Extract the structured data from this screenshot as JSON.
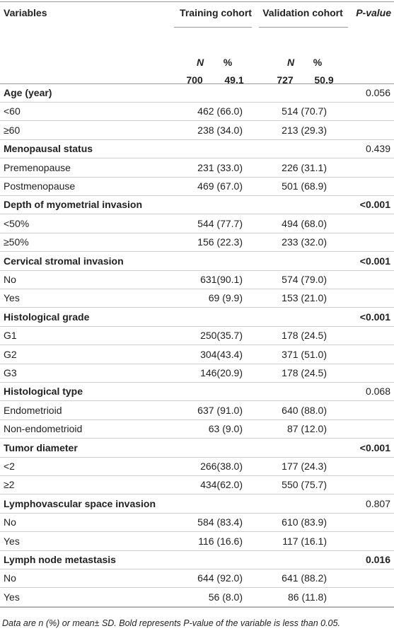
{
  "header": {
    "variables": "Variables",
    "training": "Training cohort",
    "validation": "Validation cohort",
    "pvalue": "P-value",
    "n_label": "N",
    "pct_label": "%",
    "n_label_2": "N",
    "pct_label_2": "%",
    "training_n": "700",
    "training_pct": "49.1",
    "validation_n": "727",
    "validation_pct": "50.9"
  },
  "groups": [
    {
      "label": "Age (year)",
      "p": "0.056",
      "p_bold": false,
      "rows": [
        [
          "<60",
          "462 (66.0)",
          "514 (70.7)"
        ],
        [
          "≥60",
          "238 (34.0)",
          "213 (29.3)"
        ]
      ]
    },
    {
      "label": "Menopausal status",
      "p": "0.439",
      "p_bold": false,
      "rows": [
        [
          "Premenopause",
          "231 (33.0)",
          "226 (31.1)"
        ],
        [
          "Postmenopause",
          "469 (67.0)",
          "501 (68.9)"
        ]
      ]
    },
    {
      "label": "Depth of myometrial invasion",
      "p": "<0.001",
      "p_bold": true,
      "rows": [
        [
          "<50%",
          "544 (77.7)",
          "494 (68.0)"
        ],
        [
          "≥50%",
          "156 (22.3)",
          "233 (32.0)"
        ]
      ]
    },
    {
      "label": "Cervical stromal invasion",
      "p": "<0.001",
      "p_bold": true,
      "rows": [
        [
          "No",
          "631(90.1)",
          "574 (79.0)"
        ],
        [
          "Yes",
          "69 (9.9)",
          "153 (21.0)"
        ]
      ]
    },
    {
      "label": "Histological grade",
      "p": "<0.001",
      "p_bold": true,
      "rows": [
        [
          "G1",
          "250(35.7)",
          "178 (24.5)"
        ],
        [
          "G2",
          "304(43.4)",
          "371 (51.0)"
        ],
        [
          "G3",
          "146(20.9)",
          "178 (24.5)"
        ]
      ]
    },
    {
      "label": "Histological type",
      "p": "0.068",
      "p_bold": false,
      "rows": [
        [
          "Endometrioid",
          "637 (91.0)",
          "640 (88.0)"
        ],
        [
          "Non-endometrioid",
          "63 (9.0)",
          "87 (12.0)"
        ]
      ]
    },
    {
      "label": "Tumor diameter",
      "p": "<0.001",
      "p_bold": true,
      "rows": [
        [
          "<2",
          "266(38.0)",
          "177 (24.3)"
        ],
        [
          "≥2",
          "434(62.0)",
          "550 (75.7)"
        ]
      ]
    },
    {
      "label": "Lymphovascular space invasion",
      "p": "0.807",
      "p_bold": false,
      "rows": [
        [
          "No",
          "584 (83.4)",
          "610 (83.9)"
        ],
        [
          "Yes",
          "116 (16.6)",
          "117 (16.1)"
        ]
      ]
    },
    {
      "label": "Lymph node metastasis",
      "p": "0.016",
      "p_bold": true,
      "rows": [
        [
          "No",
          "644 (92.0)",
          "641 (88.2)"
        ],
        [
          "Yes",
          "56 (8.0)",
          "86 (11.8)"
        ]
      ]
    }
  ],
  "footnote": "Data are n (%) or mean± SD. Bold represents P-value of the variable is less than 0.05."
}
